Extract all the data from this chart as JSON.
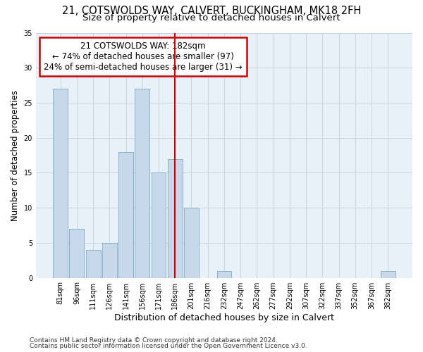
{
  "title1": "21, COTSWOLDS WAY, CALVERT, BUCKINGHAM, MK18 2FH",
  "title2": "Size of property relative to detached houses in Calvert",
  "xlabel": "Distribution of detached houses by size in Calvert",
  "ylabel": "Number of detached properties",
  "footnote1": "Contains HM Land Registry data © Crown copyright and database right 2024.",
  "footnote2": "Contains public sector information licensed under the Open Government Licence v3.0.",
  "annotation_line1": "21 COTSWOLDS WAY: 182sqm",
  "annotation_line2": "← 74% of detached houses are smaller (97)",
  "annotation_line3": "24% of semi-detached houses are larger (31) →",
  "bar_labels": [
    "81sqm",
    "96sqm",
    "111sqm",
    "126sqm",
    "141sqm",
    "156sqm",
    "171sqm",
    "186sqm",
    "201sqm",
    "216sqm",
    "232sqm",
    "247sqm",
    "262sqm",
    "277sqm",
    "292sqm",
    "307sqm",
    "322sqm",
    "337sqm",
    "352sqm",
    "367sqm",
    "382sqm"
  ],
  "bar_values": [
    27,
    7,
    4,
    5,
    18,
    27,
    15,
    17,
    10,
    0,
    1,
    0,
    0,
    0,
    0,
    0,
    0,
    0,
    0,
    0,
    1
  ],
  "bar_color": "#c8d8eb",
  "bar_edgecolor": "#7aaac8",
  "ref_bar_index": 7,
  "ylim": [
    0,
    35
  ],
  "yticks": [
    0,
    5,
    10,
    15,
    20,
    25,
    30,
    35
  ],
  "grid_color": "#c8d4e0",
  "background_color": "#e8f0f8",
  "annotation_box_facecolor": "#ffffff",
  "annotation_box_edgecolor": "#cc0000",
  "ref_line_color": "#cc0000",
  "title_fontsize": 10.5,
  "subtitle_fontsize": 9.5,
  "ylabel_fontsize": 8.5,
  "xlabel_fontsize": 9,
  "tick_fontsize": 7,
  "annotation_fontsize": 8.5,
  "footnote_fontsize": 6.5
}
